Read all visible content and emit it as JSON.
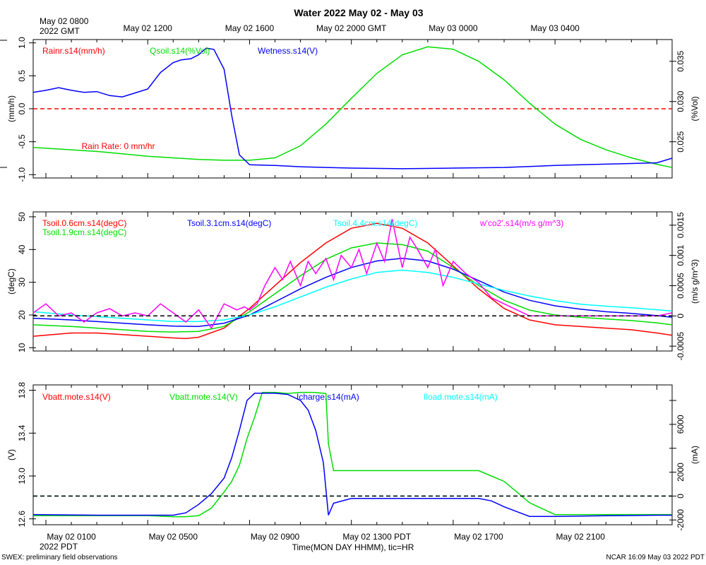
{
  "page": {
    "title": "Water 2022 May 02 - May 03",
    "top_left_label_1": "May 02 0800",
    "top_left_label_2": "2022 GMT",
    "top_ticks": [
      "May 02 1200",
      "May 02 1600",
      "May 02 2000 GMT",
      "May 03 0000",
      "May 03 0400"
    ],
    "bottom_left_label": "2022 PDT",
    "bottom_ticks": [
      "May 02 0100",
      "May 02 0500",
      "May 02 0900",
      "May 02 1300 PDT",
      "May 02 1700",
      "May 02 2100"
    ],
    "xlabel": "Time(MON DAY HHMM), tic=HR",
    "footer_left": "SWEX: preliminary field observations",
    "footer_right": "NCAR 16:09 May 03 2022 PDT",
    "colors": {
      "red": "#ff0000",
      "green": "#00dd00",
      "blue": "#0000ff",
      "cyan": "#00ffff",
      "magenta": "#ff00ff",
      "black": "#000000"
    }
  },
  "chart_data": [
    {
      "type": "line",
      "panel": "water",
      "x_unit": "hours since May 02 0800 GMT",
      "xlim": [
        -0.5,
        24.6
      ],
      "left_axis": {
        "label": "(mm/h)",
        "ylim": [
          -1.05,
          1.05
        ],
        "ticks": [
          1.0,
          0.5,
          0.0,
          -0.5,
          -1.0
        ],
        "tick_labels": [
          "1.0",
          "0.5",
          "0.0",
          "-0.5",
          "-1.0"
        ]
      },
      "right_axis": {
        "label": "(%Vol)",
        "ylim": [
          0.0205,
          0.0377
        ],
        "ticks": [
          0.035,
          0.03,
          0.025
        ],
        "tick_labels": [
          "0.035",
          "0.030",
          "0.025"
        ]
      },
      "series": [
        {
          "name": "Rainr.s14(mm/h)",
          "color": "red",
          "axis": "left",
          "dashed": true,
          "x": [
            -0.5,
            24.6
          ],
          "y": [
            0.0,
            0.0
          ]
        },
        {
          "name": "Qsoil.s14(%Vol)",
          "color": "green",
          "axis": "right",
          "x": [
            -0.5,
            1,
            2,
            3,
            4,
            5,
            6,
            7,
            8,
            9,
            10,
            11,
            12,
            13,
            14,
            15,
            16,
            17,
            18,
            19,
            20,
            21,
            22,
            23,
            24,
            24.6
          ],
          "y": [
            0.0243,
            0.024,
            0.0238,
            0.0235,
            0.0232,
            0.023,
            0.0228,
            0.0227,
            0.0227,
            0.023,
            0.0245,
            0.0272,
            0.0304,
            0.0335,
            0.0358,
            0.0368,
            0.0365,
            0.035,
            0.0327,
            0.0298,
            0.0272,
            0.0253,
            0.024,
            0.023,
            0.0222,
            0.0218
          ]
        },
        {
          "name": "Wetness.s14(V)",
          "color": "blue",
          "axis": "left",
          "x": [
            -0.5,
            0,
            0.5,
            1,
            1.5,
            2,
            2.5,
            3,
            3.5,
            4,
            4.5,
            5,
            5.3,
            5.7,
            6,
            6.3,
            6.6,
            7,
            7.3,
            7.6,
            8,
            9,
            10,
            11,
            12,
            14,
            16,
            18,
            20,
            21,
            22,
            23,
            24,
            24.6
          ],
          "y": [
            0.25,
            0.28,
            0.32,
            0.28,
            0.25,
            0.26,
            0.2,
            0.18,
            0.24,
            0.3,
            0.55,
            0.7,
            0.74,
            0.76,
            0.82,
            0.92,
            0.9,
            0.6,
            -0.1,
            -0.7,
            -0.85,
            -0.86,
            -0.88,
            -0.89,
            -0.9,
            -0.91,
            -0.9,
            -0.89,
            -0.86,
            -0.85,
            -0.84,
            -0.83,
            -0.82,
            -0.75
          ]
        }
      ],
      "annotations": [
        {
          "text": "Rain Rate: 0 mm/hr",
          "color": "red",
          "x": 1.4,
          "y": -0.61
        }
      ]
    },
    {
      "type": "line",
      "panel": "soil_temperature",
      "x_unit": "hours since May 02 0800 GMT",
      "xlim": [
        -0.5,
        24.6
      ],
      "left_axis": {
        "label": "(degC)",
        "ylim": [
          9.0,
          51.5
        ],
        "ticks": [
          50,
          40,
          30,
          20,
          10
        ],
        "tick_labels": [
          "50",
          "40",
          "30",
          "20",
          "10"
        ]
      },
      "right_axis": {
        "label": "(m/s g/m^3)",
        "ylim": [
          -0.00058,
          0.00172
        ],
        "ticks": [
          0.0015,
          0.001,
          0.0005,
          0.0,
          -0.0005
        ],
        "tick_labels": [
          "0.0015",
          "0.001",
          "0.0005",
          "0",
          "-0.0005"
        ]
      },
      "series": [
        {
          "name": "Tsoil.0.6cm.s14(degC)",
          "color": "red",
          "axis": "left",
          "x": [
            -0.5,
            1,
            2,
            3,
            4,
            5,
            5.5,
            6,
            7,
            8,
            9,
            10,
            11,
            12,
            13,
            14,
            15,
            16,
            17,
            18,
            19,
            20,
            21,
            22,
            23,
            24,
            24.6
          ],
          "y": [
            13.5,
            14.5,
            14.5,
            14,
            13.5,
            13.0,
            12.8,
            13.2,
            16,
            22,
            29,
            36,
            42,
            46.5,
            48,
            46.5,
            42,
            35,
            28,
            22,
            18.5,
            17,
            16.5,
            16,
            15.5,
            14.5,
            13.8
          ]
        },
        {
          "name": "Tsoil.1.9cm.s14(degC)",
          "color": "green",
          "axis": "left",
          "x": [
            -0.5,
            1,
            2,
            3,
            4,
            5,
            6,
            7,
            8,
            9,
            10,
            11,
            12,
            13,
            14,
            15,
            16,
            17,
            18,
            19,
            20,
            21,
            22,
            23,
            24,
            24.6
          ],
          "y": [
            17,
            16.5,
            16,
            15.5,
            15,
            14.8,
            15,
            16.5,
            21,
            26.5,
            32,
            37,
            40.5,
            42,
            41.5,
            39.5,
            34.5,
            29,
            24.5,
            21.5,
            20,
            19.3,
            18.8,
            18.3,
            17.6,
            17
          ]
        },
        {
          "name": "Tsoil.3.1cm.s14(degC)",
          "color": "blue",
          "axis": "left",
          "x": [
            -0.5,
            1,
            2,
            3,
            4,
            5,
            6,
            7,
            8,
            9,
            10,
            11,
            12,
            13,
            14,
            15,
            16,
            17,
            18,
            19,
            20,
            21,
            22,
            23,
            24,
            24.6
          ],
          "y": [
            19,
            18.5,
            18,
            17.5,
            17,
            16.6,
            16.5,
            17.5,
            20,
            24,
            28,
            31.5,
            34.5,
            36.5,
            37.3,
            36.5,
            34,
            30.5,
            27,
            24.5,
            22.8,
            21.8,
            21,
            20.5,
            19.8,
            19.3
          ]
        },
        {
          "name": "Tsoil.4.4cm.s14(degC)",
          "color": "cyan",
          "axis": "left",
          "x": [
            -0.5,
            1,
            2,
            3,
            4,
            5,
            6,
            7,
            8,
            9,
            10,
            11,
            12,
            13,
            14,
            15,
            16,
            17,
            18,
            19,
            20,
            21,
            22,
            23,
            24,
            24.6
          ],
          "y": [
            21,
            20,
            19.5,
            19,
            18.5,
            18,
            18,
            18.5,
            20,
            22.5,
            25.5,
            28.5,
            31,
            33,
            33.7,
            33,
            31.5,
            29.5,
            27.5,
            25.8,
            24.4,
            23.3,
            22.7,
            22.2,
            21.6,
            21.2
          ]
        },
        {
          "name": "w'co2'.s14(m/s g/m^3)",
          "color": "magenta",
          "axis": "right",
          "x": [
            -0.5,
            0,
            0.5,
            1,
            1.5,
            2,
            2.5,
            3,
            3.5,
            4,
            4.5,
            5,
            5.5,
            6,
            6.5,
            7,
            7.5,
            7.8,
            8,
            8.3,
            8.6,
            9,
            9.3,
            9.6,
            10,
            10.3,
            10.6,
            11,
            11.3,
            11.6,
            12,
            12.3,
            12.6,
            13,
            13.3,
            13.6,
            14,
            14.3,
            14.6,
            15,
            15.3,
            15.6,
            16,
            16.5,
            17,
            17.5,
            18,
            18.5,
            19,
            20,
            21,
            22,
            23,
            24,
            24.6
          ],
          "y": [
            5e-05,
            0.0002,
            0.0,
            5e-05,
            -0.0001,
            5e-05,
            0.00012,
            0.0,
            5e-05,
            0.0,
            0.0002,
            5e-05,
            -0.0001,
            0.0001,
            -0.0002,
            0.0002,
            0.0001,
            0.00015,
            0.0001,
            0.0002,
            0.0005,
            0.0008,
            0.0006,
            0.0009,
            0.0005,
            0.0009,
            0.0007,
            0.00095,
            0.0006,
            0.001,
            0.0008,
            0.0011,
            0.0007,
            0.0012,
            0.0009,
            0.0016,
            0.0008,
            0.0013,
            0.0011,
            0.0008,
            0.0011,
            0.0005,
            0.0009,
            0.0007,
            0.00055,
            0.0003,
            0.0002,
            0.0001,
            0.0,
            0.0,
            0.0,
            0.0,
            0.0,
            0.0,
            5e-05
          ]
        },
        {
          "name": "zero reference",
          "color": "black",
          "axis": "right",
          "dashed": true,
          "x": [
            -0.5,
            24.6
          ],
          "y": [
            0.0,
            0.0
          ]
        }
      ]
    },
    {
      "type": "line",
      "panel": "battery",
      "x_unit": "hours since May 02 0800 GMT",
      "xlim": [
        -0.5,
        24.6
      ],
      "left_axis": {
        "label": "(V)",
        "ylim": [
          12.545,
          13.85
        ],
        "ticks": [
          13.8,
          13.4,
          13.0,
          12.6
        ],
        "tick_labels": [
          "13.8",
          "13.4",
          "13.0",
          "12.6"
        ]
      },
      "right_axis": {
        "label": "(mA)",
        "ylim": [
          -2400,
          9300
        ],
        "ticks": [
          8000,
          6000,
          4000,
          2000,
          0,
          -2000
        ],
        "tick_labels": [
          "",
          "6000",
          "",
          "2000",
          "0",
          "-2000"
        ]
      },
      "series": [
        {
          "name": "Vbatt.mote.s14(V)",
          "color": "red",
          "axis": "left",
          "x": [],
          "y": []
        },
        {
          "name": "Vbatt.mote.s14(V)",
          "color": "green",
          "axis": "left",
          "x": [
            -0.5,
            2,
            4,
            5,
            5.5,
            6,
            6.5,
            7,
            7.3,
            7.6,
            7.9,
            8.2,
            8.5,
            9,
            9.5,
            10,
            10.5,
            11,
            11.1,
            11.3,
            12,
            14,
            16,
            17,
            17.5,
            18,
            18.5,
            19,
            20,
            22,
            24,
            24.6
          ],
          "y": [
            12.63,
            12.63,
            12.63,
            12.62,
            12.62,
            12.63,
            12.7,
            12.85,
            12.95,
            13.1,
            13.35,
            13.55,
            13.78,
            13.78,
            13.77,
            13.78,
            13.78,
            13.77,
            13.3,
            13.05,
            13.05,
            13.05,
            13.05,
            13.05,
            13.0,
            12.95,
            12.85,
            12.75,
            12.64,
            12.64,
            12.64,
            12.64
          ]
        },
        {
          "name": "Icharge.s14(mA)",
          "color": "blue",
          "axis": "right",
          "x": [
            -0.5,
            2,
            4,
            5,
            5.5,
            6,
            6.5,
            7,
            7.3,
            7.6,
            7.9,
            8.2,
            8.5,
            9,
            9.5,
            10,
            10.3,
            10.6,
            10.9,
            11.1,
            11.3,
            12,
            14,
            16,
            17,
            17.5,
            18,
            18.5,
            19,
            20,
            22,
            24,
            24.6
          ],
          "y": [
            -1550,
            -1600,
            -1600,
            -1600,
            -1400,
            -700,
            200,
            1500,
            3200,
            5500,
            8000,
            8600,
            8600,
            8600,
            8500,
            8000,
            7200,
            5500,
            2800,
            -1600,
            -600,
            -200,
            -200,
            -200,
            -200,
            -400,
            -900,
            -1300,
            -1700,
            -1700,
            -1650,
            -1600,
            -1600
          ]
        },
        {
          "name": "Iload.mote.s14(mA)",
          "color": "cyan",
          "axis": "right",
          "dashed": true,
          "x": [
            -0.5,
            24.6
          ],
          "y": [
            0,
            0
          ]
        },
        {
          "name": "zero reference",
          "color": "black",
          "axis": "right",
          "dashed": true,
          "x": [
            -0.5,
            24.6
          ],
          "y": [
            0,
            0
          ]
        }
      ]
    }
  ]
}
